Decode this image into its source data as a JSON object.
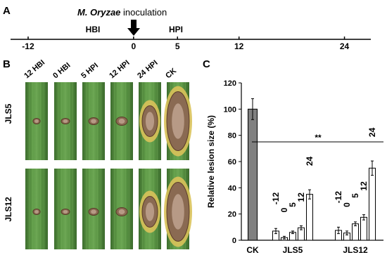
{
  "panels": {
    "a": "A",
    "b": "B",
    "c": "C"
  },
  "timeline": {
    "title_italic": "M. Oryzae",
    "title_rest": " inoculation",
    "before": "HBI",
    "after": "HPI",
    "xlim": [
      -14,
      27
    ],
    "ticks": [
      -12,
      0,
      5,
      12,
      24
    ]
  },
  "photos": {
    "columns": [
      "12 HBI",
      "0 HBI",
      "5 HPI",
      "12 HPI",
      "24 HPI",
      "CK"
    ],
    "rows": [
      "JLS5",
      "JLS12"
    ]
  },
  "chart_data": {
    "type": "bar",
    "y_label": "Relative lesion size  (%)",
    "ylim": [
      0,
      120
    ],
    "yticks": [
      0,
      20,
      40,
      60,
      80,
      100,
      120
    ],
    "significance": "**",
    "groups": [
      {
        "name": "CK",
        "color": "#808080",
        "values": [
          100
        ],
        "errors": [
          8
        ]
      },
      {
        "name": "JLS5",
        "color": "#ffffff",
        "bar_labels": [
          "-12",
          "0",
          "5",
          "12",
          "24"
        ],
        "values": [
          7,
          2,
          6,
          9.5,
          35
        ],
        "errors": [
          2,
          1,
          1,
          1.5,
          3.5
        ]
      },
      {
        "name": "JLS12",
        "color": "#ffffff",
        "bar_labels": [
          "-12",
          "0",
          "5",
          "12",
          "24"
        ],
        "values": [
          7.5,
          5.5,
          12.5,
          17.5,
          55
        ],
        "errors": [
          2.5,
          1.5,
          1.5,
          2,
          5.5
        ]
      }
    ]
  }
}
